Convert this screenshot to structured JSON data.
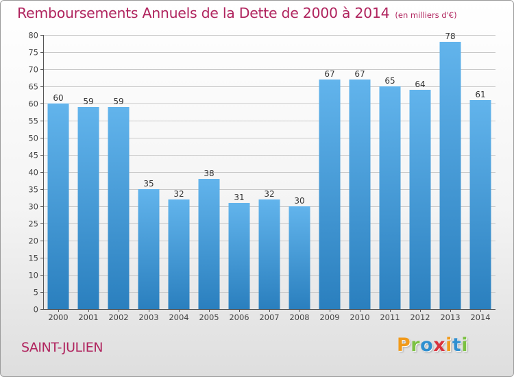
{
  "title": "Remboursements Annuels de la Dette de 2000 à 2014",
  "unit": "(en milliers d'€)",
  "commune": "SAINT-JULIEN",
  "logo_text": "Proxiti",
  "colors": {
    "title": "#b0245e",
    "bar_top": "#62b4ec",
    "bar_bottom": "#2a7fbe",
    "grid": "#c8c8c8",
    "logo_letters": [
      "#f19a1b",
      "#7bc142",
      "#2f8fd0",
      "#d9323d",
      "#f19a1b",
      "#2f8fd0",
      "#7bc142"
    ]
  },
  "chart_data": {
    "type": "bar",
    "categories": [
      "2000",
      "2001",
      "2002",
      "2003",
      "2004",
      "2005",
      "2006",
      "2007",
      "2008",
      "2009",
      "2010",
      "2011",
      "2012",
      "2013",
      "2014"
    ],
    "values": [
      60,
      59,
      59,
      35,
      32,
      38,
      31,
      32,
      30,
      67,
      67,
      65,
      64,
      78,
      61
    ],
    "ylim": [
      0,
      80
    ],
    "yticks": [
      0,
      5,
      10,
      15,
      20,
      25,
      30,
      35,
      40,
      45,
      50,
      55,
      60,
      65,
      70,
      75,
      80
    ],
    "grid": true,
    "data_labels": true,
    "xlabel": "",
    "ylabel": ""
  }
}
